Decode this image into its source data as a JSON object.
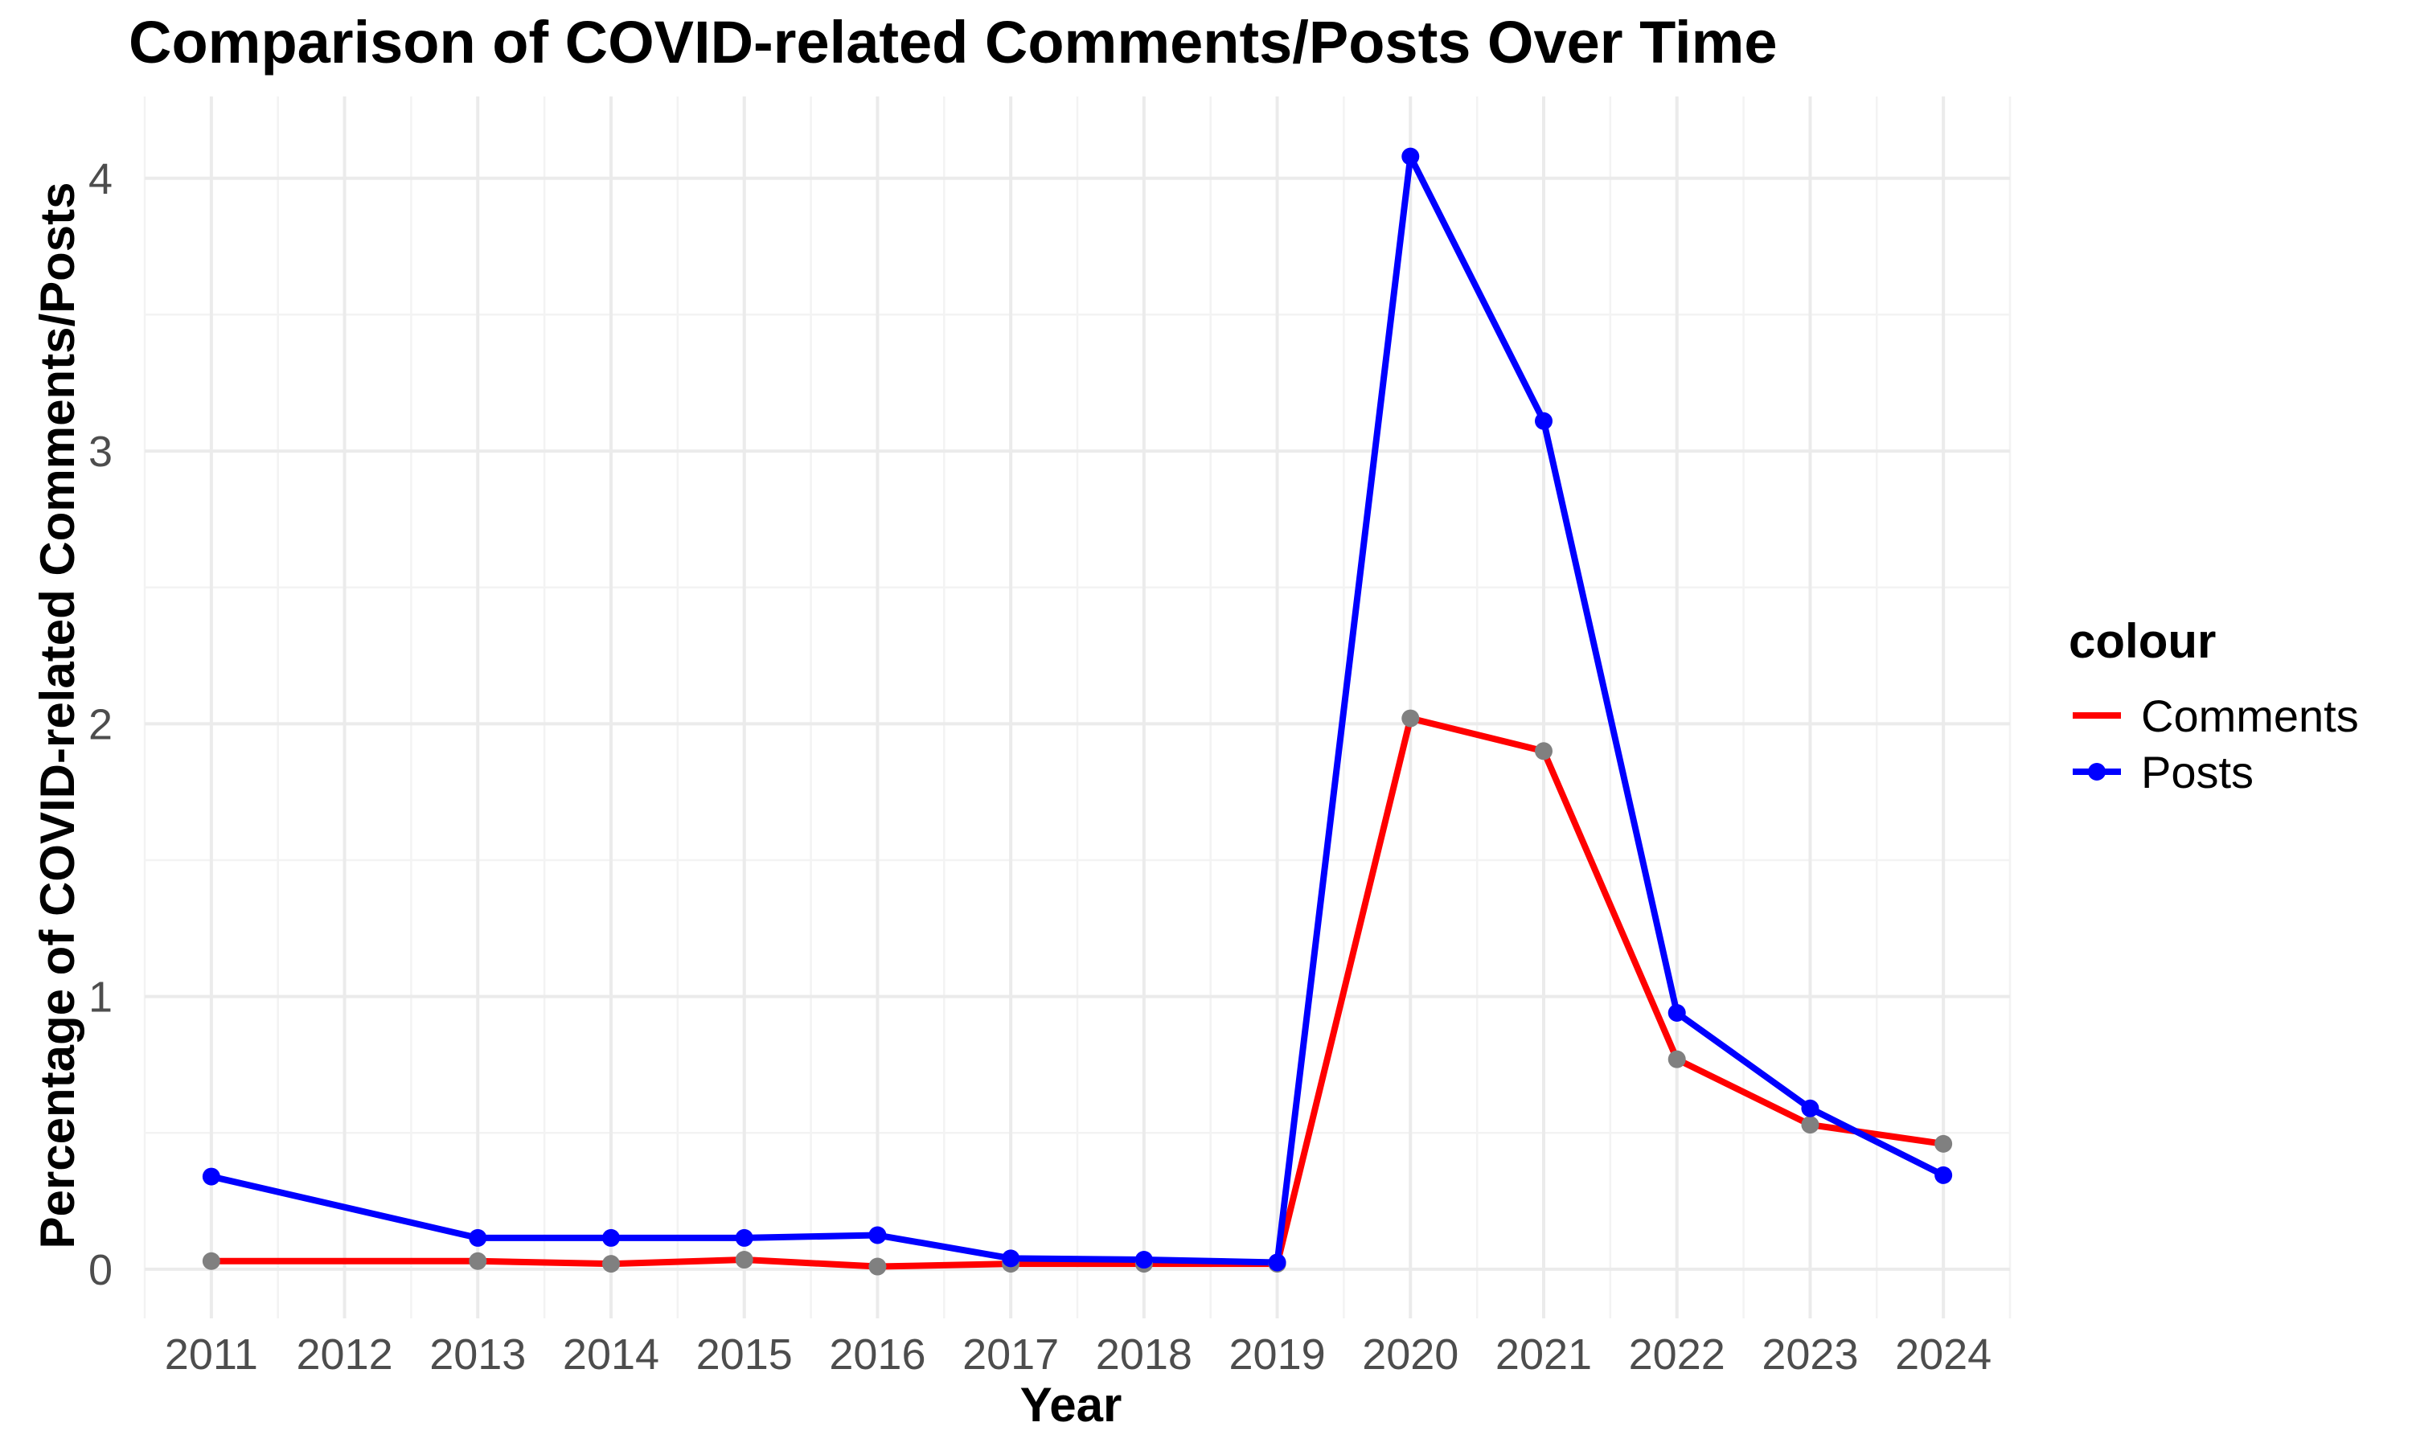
{
  "chart_data": {
    "type": "line",
    "title": "Comparison of COVID-related Comments/Posts Over Time",
    "xlabel": "Year",
    "ylabel": "Percentage of COVID-related Comments/Posts",
    "x_ticks": [
      "2011",
      "2012",
      "2013",
      "2014",
      "2015",
      "2016",
      "2017",
      "2018",
      "2019",
      "2020",
      "2021",
      "2022",
      "2023",
      "2024"
    ],
    "y_ticks": [
      0,
      1,
      2,
      3,
      4
    ],
    "xlim": [
      2010.5,
      2024.5
    ],
    "ylim": [
      -0.18,
      4.3
    ],
    "grid": true,
    "legend": {
      "title": "colour",
      "position": "right"
    },
    "series": [
      {
        "name": "Comments",
        "color": "#ff0000",
        "point_color": "#808080",
        "x": [
          2011,
          2013,
          2014,
          2015,
          2016,
          2017,
          2018,
          2019,
          2020,
          2021,
          2022,
          2023,
          2024
        ],
        "y": [
          0.03,
          0.03,
          0.02,
          0.035,
          0.01,
          0.02,
          0.02,
          0.02,
          2.02,
          1.9,
          0.77,
          0.53,
          0.46
        ]
      },
      {
        "name": "Posts",
        "color": "#0000ff",
        "point_color": "#0000ff",
        "x": [
          2011,
          2013,
          2014,
          2015,
          2016,
          2017,
          2018,
          2019,
          2020,
          2021,
          2022,
          2023,
          2024
        ],
        "y": [
          0.34,
          0.115,
          0.115,
          0.115,
          0.125,
          0.04,
          0.035,
          0.025,
          4.08,
          3.11,
          0.94,
          0.59,
          0.345
        ]
      }
    ]
  }
}
